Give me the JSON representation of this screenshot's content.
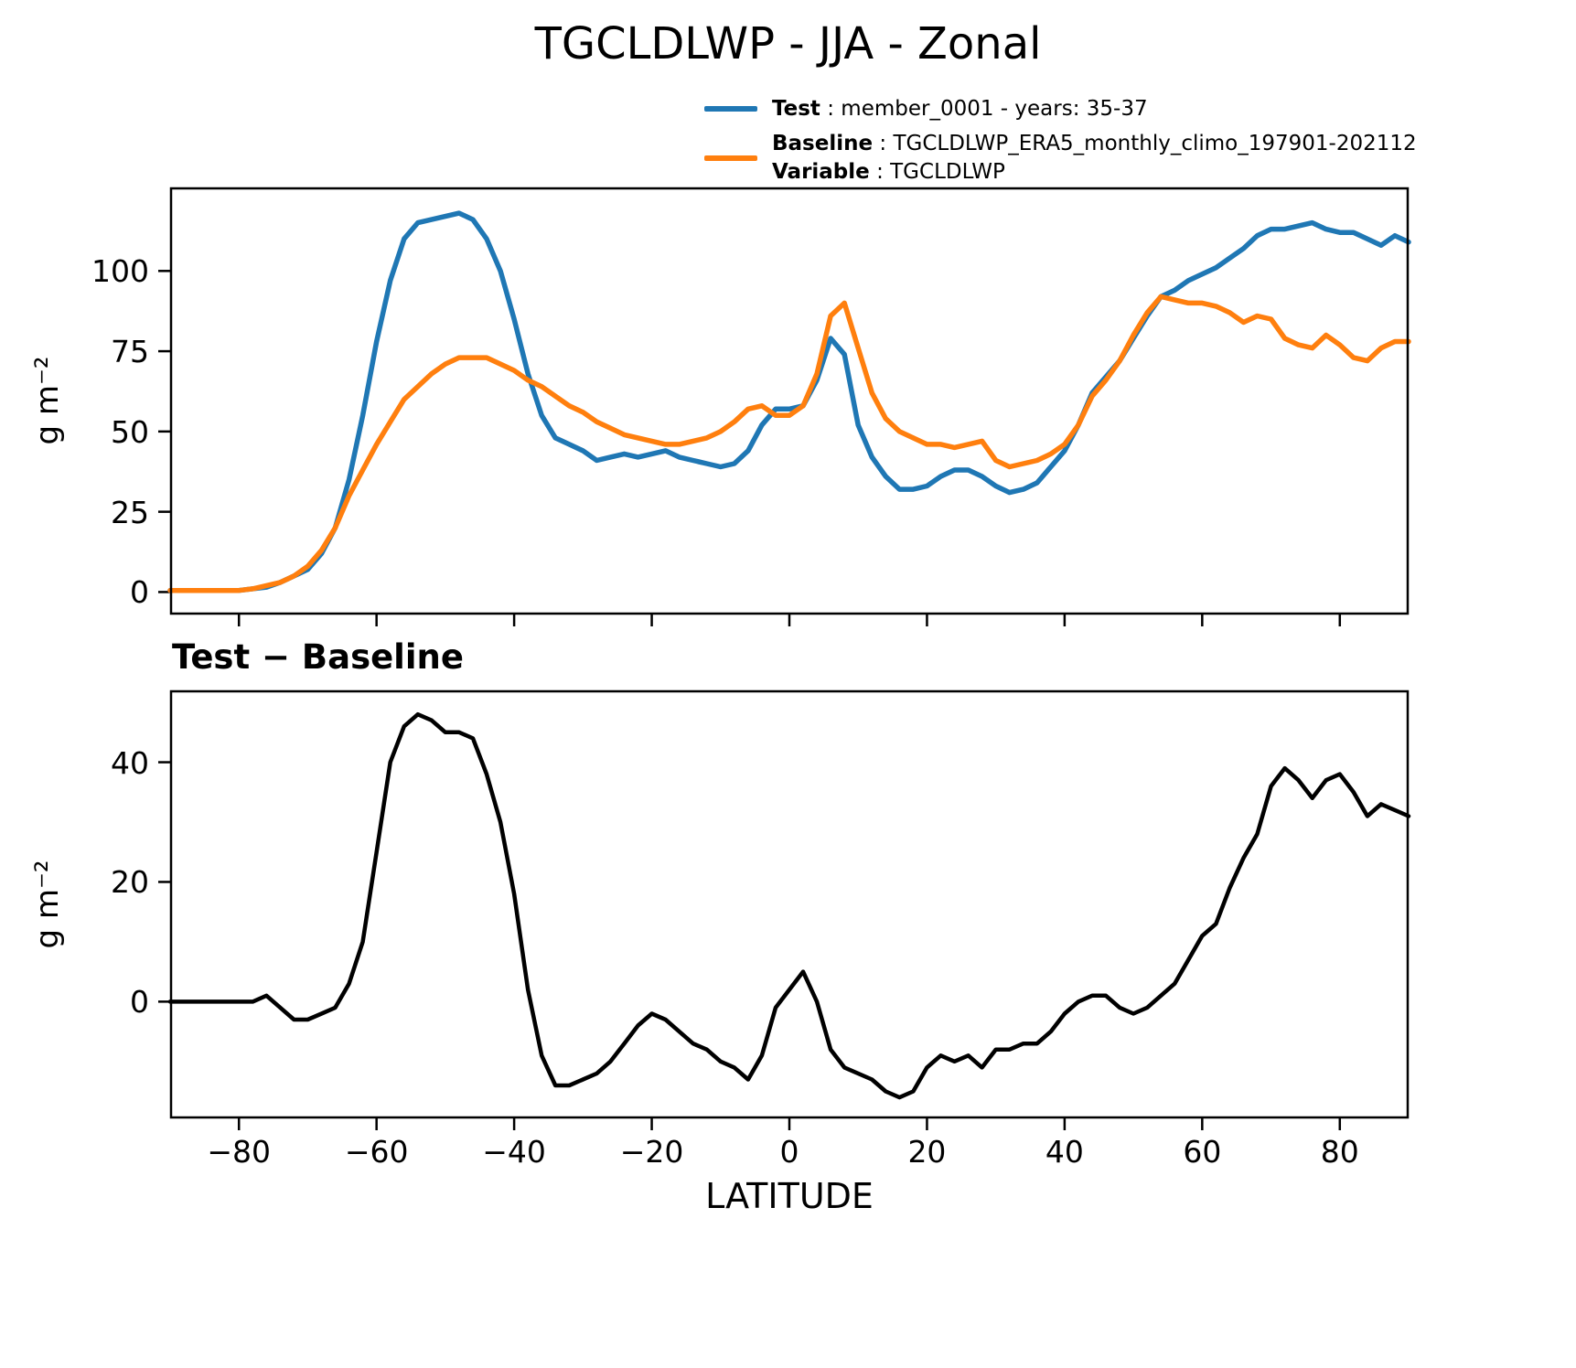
{
  "title": "TGCLDLWP - JJA - Zonal",
  "legend": {
    "entries": [
      {
        "name": "Test",
        "text": " : member_0001 - years: 35-37",
        "color": "#1f77b4"
      },
      {
        "name": "Baseline",
        "text": " : TGCLDLWP_ERA5_monthly_climo_197901-202112",
        "color": "#ff7f0e",
        "extra_name": "Variable",
        "extra_text": " : TGCLDLWP"
      }
    ]
  },
  "chart_data": [
    {
      "type": "line",
      "panel": "main",
      "ylabel": "g m⁻²",
      "xlabel": "",
      "xlim": [
        -90,
        90
      ],
      "ylim": [
        -7,
        126
      ],
      "grid": false,
      "xticks": [
        -80,
        -60,
        -40,
        -20,
        0,
        20,
        40,
        60,
        80
      ],
      "xtick_labels": [
        "−80",
        "−60",
        "−40",
        "−20",
        "0",
        "20",
        "40",
        "60",
        "80"
      ],
      "yticks": [
        0,
        25,
        50,
        75,
        100
      ],
      "ytick_labels": [
        "0",
        "25",
        "50",
        "75",
        "100"
      ],
      "x": [
        -90,
        -88,
        -86,
        -84,
        -82,
        -80,
        -78,
        -76,
        -74,
        -72,
        -70,
        -68,
        -66,
        -64,
        -62,
        -60,
        -58,
        -56,
        -54,
        -52,
        -50,
        -48,
        -46,
        -44,
        -42,
        -40,
        -38,
        -36,
        -34,
        -32,
        -30,
        -28,
        -26,
        -24,
        -22,
        -20,
        -18,
        -16,
        -14,
        -12,
        -10,
        -8,
        -6,
        -4,
        -2,
        0,
        2,
        4,
        6,
        8,
        10,
        12,
        14,
        16,
        18,
        20,
        22,
        24,
        26,
        28,
        30,
        32,
        34,
        36,
        38,
        40,
        42,
        44,
        46,
        48,
        50,
        52,
        54,
        56,
        58,
        60,
        62,
        64,
        66,
        68,
        70,
        72,
        74,
        76,
        78,
        80,
        82,
        84,
        86,
        88,
        90
      ],
      "series": [
        {
          "name": "Test",
          "color": "#1f77b4",
          "width": 5.5,
          "values": [
            0.5,
            0.5,
            0.5,
            0.5,
            0.5,
            0.5,
            1,
            1.5,
            3,
            5,
            7,
            12,
            20,
            35,
            55,
            78,
            97,
            110,
            115,
            116,
            117,
            118,
            116,
            110,
            100,
            85,
            68,
            55,
            48,
            46,
            44,
            41,
            42,
            43,
            42,
            43,
            44,
            42,
            41,
            40,
            39,
            40,
            44,
            52,
            57,
            57,
            58,
            66,
            79,
            74,
            52,
            42,
            36,
            32,
            32,
            33,
            36,
            38,
            38,
            36,
            33,
            31,
            32,
            34,
            39,
            44,
            52,
            62,
            67,
            72,
            79,
            86,
            92,
            94,
            97,
            99,
            101,
            104,
            107,
            111,
            113,
            113,
            114,
            115,
            113,
            112,
            112,
            110,
            108,
            111,
            109
          ]
        },
        {
          "name": "Baseline",
          "color": "#ff7f0e",
          "width": 5.5,
          "values": [
            0.5,
            0.5,
            0.5,
            0.5,
            0.5,
            0.5,
            1,
            2,
            3,
            5,
            8,
            13,
            20,
            30,
            38,
            46,
            53,
            60,
            64,
            68,
            71,
            73,
            73,
            73,
            71,
            69,
            66,
            64,
            61,
            58,
            56,
            53,
            51,
            49,
            48,
            47,
            46,
            46,
            47,
            48,
            50,
            53,
            57,
            58,
            55,
            55,
            58,
            68,
            86,
            90,
            76,
            62,
            54,
            50,
            48,
            46,
            46,
            45,
            46,
            47,
            41,
            39,
            40,
            41,
            43,
            46,
            52,
            61,
            66,
            72,
            80,
            87,
            92,
            91,
            90,
            90,
            89,
            87,
            84,
            86,
            85,
            79,
            77,
            76,
            80,
            77,
            73,
            72,
            76,
            78,
            78
          ]
        }
      ]
    },
    {
      "type": "line",
      "panel": "difference",
      "title": "Test − Baseline",
      "ylabel": "g m⁻²",
      "xlabel": "LATITUDE",
      "xlim": [
        -90,
        90
      ],
      "ylim": [
        -19.5,
        52
      ],
      "grid": false,
      "xticks": [
        -80,
        -60,
        -40,
        -20,
        0,
        20,
        40,
        60,
        80
      ],
      "xtick_labels": [
        "−80",
        "−60",
        "−40",
        "−20",
        "0",
        "20",
        "40",
        "60",
        "80"
      ],
      "yticks": [
        0,
        20,
        40
      ],
      "ytick_labels": [
        "0",
        "20",
        "40"
      ],
      "x": [
        -90,
        -88,
        -86,
        -84,
        -82,
        -80,
        -78,
        -76,
        -74,
        -72,
        -70,
        -68,
        -66,
        -64,
        -62,
        -60,
        -58,
        -56,
        -54,
        -52,
        -50,
        -48,
        -46,
        -44,
        -42,
        -40,
        -38,
        -36,
        -34,
        -32,
        -30,
        -28,
        -26,
        -24,
        -22,
        -20,
        -18,
        -16,
        -14,
        -12,
        -10,
        -8,
        -6,
        -4,
        -2,
        0,
        2,
        4,
        6,
        8,
        10,
        12,
        14,
        16,
        18,
        20,
        22,
        24,
        26,
        28,
        30,
        32,
        34,
        36,
        38,
        40,
        42,
        44,
        46,
        48,
        50,
        52,
        54,
        56,
        58,
        60,
        62,
        64,
        66,
        68,
        70,
        72,
        74,
        76,
        78,
        80,
        82,
        84,
        86,
        88,
        90
      ],
      "series": [
        {
          "name": "Test − Baseline",
          "color": "#000000",
          "width": 4.5,
          "values": [
            0,
            0,
            0,
            0,
            0,
            0,
            0,
            1,
            -1,
            -3,
            -3,
            -2,
            -1,
            3,
            10,
            25,
            40,
            46,
            48,
            47,
            45,
            45,
            44,
            38,
            30,
            18,
            2,
            -9,
            -14,
            -14,
            -13,
            -12,
            -10,
            -7,
            -4,
            -2,
            -3,
            -5,
            -7,
            -8,
            -10,
            -11,
            -13,
            -9,
            -1,
            2,
            5,
            0,
            -8,
            -11,
            -12,
            -13,
            -15,
            -16,
            -15,
            -11,
            -9,
            -10,
            -9,
            -11,
            -8,
            -8,
            -7,
            -7,
            -5,
            -2,
            0,
            1,
            1,
            -1,
            -2,
            -1,
            1,
            3,
            7,
            11,
            13,
            19,
            24,
            28,
            36,
            39,
            37,
            34,
            37,
            38,
            35,
            31,
            33,
            32,
            31
          ]
        }
      ]
    }
  ]
}
